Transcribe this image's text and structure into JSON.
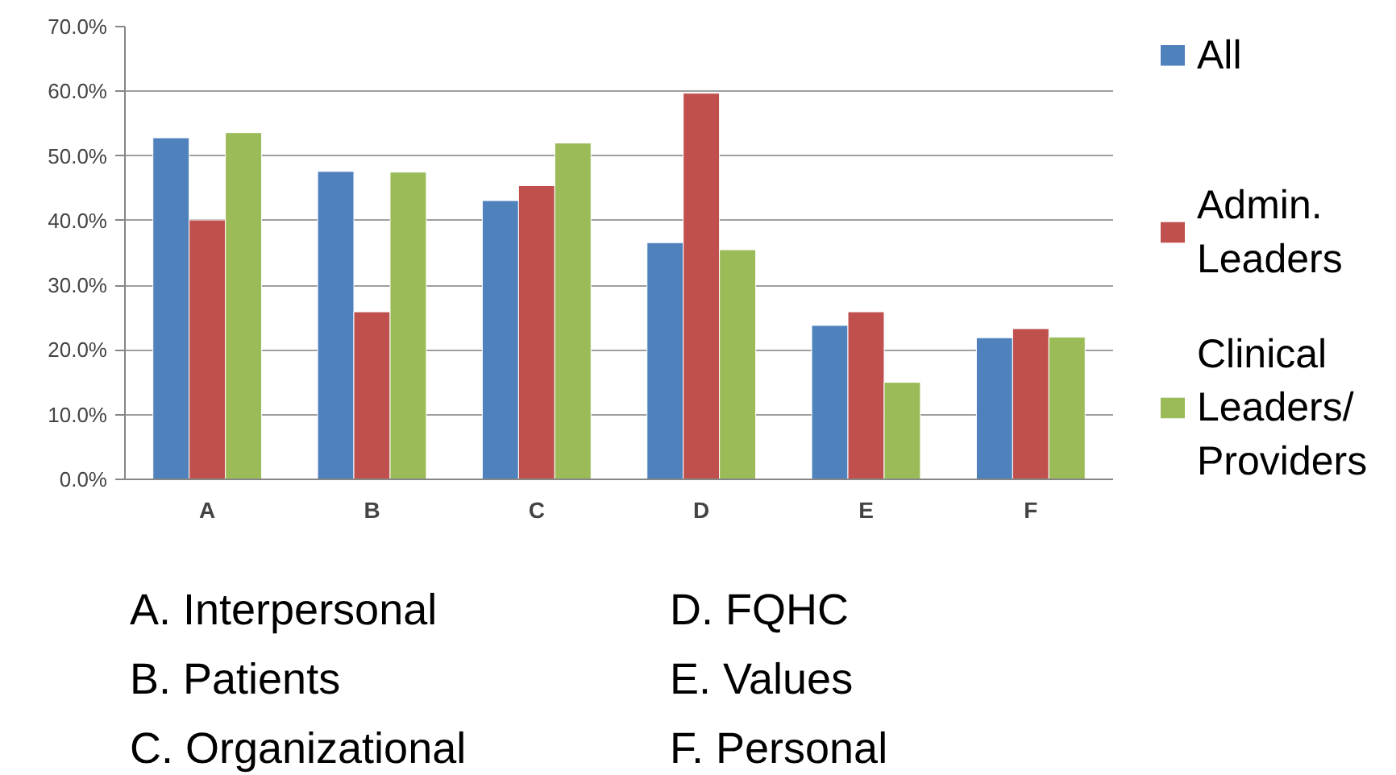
{
  "chart_data": {
    "type": "bar",
    "categories": [
      "A",
      "B",
      "C",
      "D",
      "E",
      "F"
    ],
    "series": [
      {
        "name": "All",
        "color": "#4f81bd",
        "values": [
          52.8,
          47.6,
          43.1,
          36.6,
          23.8,
          21.9
        ]
      },
      {
        "name": "Admin. Leaders",
        "color": "#c0504d",
        "values": [
          40.1,
          25.9,
          45.4,
          59.7,
          25.9,
          23.3
        ]
      },
      {
        "name": "Clinical Leaders/ Providers",
        "color": "#9bbb59",
        "values": [
          53.6,
          47.5,
          52.0,
          35.5,
          15.0,
          22.0
        ]
      }
    ],
    "ylim": [
      0,
      70
    ],
    "yticks": [
      {
        "value": 0,
        "label": "0.0%"
      },
      {
        "value": 10,
        "label": "10.0%"
      },
      {
        "value": 20,
        "label": "20.0%"
      },
      {
        "value": 30,
        "label": "30.0%"
      },
      {
        "value": 40,
        "label": "40.0%"
      },
      {
        "value": 50,
        "label": "50.0%"
      },
      {
        "value": 60,
        "label": "60.0%"
      },
      {
        "value": 70,
        "label": "70.0%"
      }
    ],
    "grid": "y",
    "legend": "right",
    "annotations": [
      "A.   Interpersonal",
      "B.   Patients",
      "C.   Organizational",
      "D.   FQHC",
      "E.   Values",
      "F.   Personal"
    ]
  }
}
